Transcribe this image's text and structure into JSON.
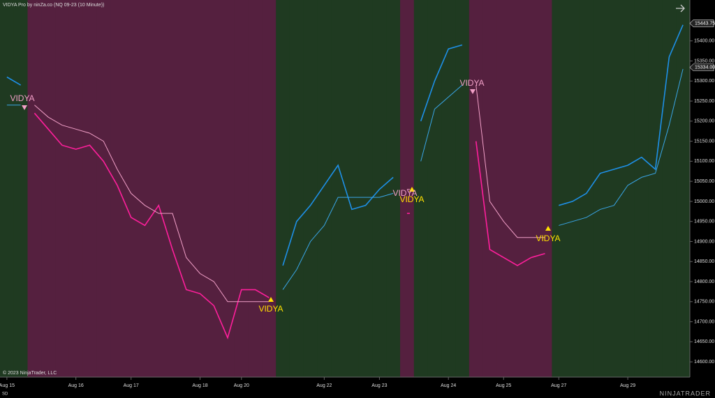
{
  "chart_data": {
    "type": "line",
    "title": "VIDYA Pro by ninZa.co (NQ 09-23 (10 Minute))",
    "copyright": "© 2023 NinjaTrader, LLC",
    "logo": "NINJATRADER",
    "corner_label": "SD",
    "categories": [
      "Aug 15",
      null,
      null,
      null,
      null,
      "Aug 16",
      null,
      null,
      null,
      "Aug 17",
      null,
      null,
      null,
      null,
      "Aug 18",
      null,
      null,
      "Aug 20",
      null,
      null,
      null,
      null,
      null,
      "Aug 22",
      null,
      null,
      null,
      "Aug 23",
      null,
      null,
      null,
      null,
      "Aug 24",
      null,
      null,
      null,
      "Aug 25",
      null,
      null,
      null,
      "Aug 27",
      null,
      null,
      null,
      null,
      "Aug 29",
      null,
      null,
      null,
      null
    ],
    "series": [
      {
        "color": "#1e90e8",
        "values": [
          15310,
          15290,
          null,
          null,
          null,
          null,
          null,
          null,
          null,
          null,
          null,
          null,
          null,
          null,
          null,
          null,
          null,
          null,
          null,
          null,
          14840,
          14950,
          14990,
          15040,
          15090,
          14980,
          14990,
          15030,
          15060,
          null,
          15200,
          15300,
          15380,
          15390,
          null,
          null,
          null,
          null,
          null,
          null,
          14990,
          15000,
          15020,
          15070,
          15080,
          15090,
          15110,
          15080,
          15360,
          15440
        ]
      },
      {
        "color": "#ff1f9c",
        "values": [
          null,
          null,
          15220,
          15180,
          15140,
          15130,
          15140,
          15100,
          15040,
          14960,
          14940,
          14990,
          14880,
          14780,
          14770,
          14740,
          14660,
          14780,
          14780,
          14760,
          null,
          null,
          null,
          null,
          null,
          null,
          null,
          null,
          null,
          14970,
          null,
          null,
          null,
          null,
          15150,
          14880,
          14860,
          14840,
          14860,
          14870,
          null,
          null,
          null,
          null,
          null,
          null,
          null,
          null,
          null,
          null
        ]
      },
      {
        "color": "#3aa6e8",
        "values": [
          15240,
          15240,
          null,
          null,
          null,
          null,
          null,
          null,
          null,
          null,
          null,
          null,
          null,
          null,
          null,
          null,
          null,
          null,
          null,
          null,
          14780,
          14830,
          14900,
          14940,
          15010,
          15010,
          15010,
          15010,
          15020,
          null,
          15100,
          15230,
          15260,
          15290,
          null,
          null,
          null,
          null,
          null,
          null,
          14940,
          14950,
          14960,
          14980,
          14990,
          15040,
          15060,
          15070,
          15190,
          15330
        ]
      },
      {
        "color": "#f2a0c8",
        "values": [
          null,
          null,
          15240,
          15210,
          15190,
          15180,
          15170,
          15150,
          15080,
          15020,
          14990,
          14970,
          14970,
          14860,
          14820,
          14800,
          14750,
          14750,
          14750,
          14750,
          null,
          null,
          null,
          null,
          null,
          null,
          null,
          null,
          null,
          15030,
          null,
          null,
          null,
          null,
          15290,
          15000,
          14950,
          14910,
          14910,
          14910,
          null,
          null,
          null,
          null,
          null,
          null,
          null,
          null,
          null,
          null
        ]
      }
    ],
    "up_background": "#1f3a21",
    "down_background": "#55203f",
    "annotations": [
      "VIDYA",
      "VIDYA",
      "VIDYA",
      "VIDYA",
      "VIDYA",
      "VIDYA"
    ],
    "price_markers": [
      {
        "value": 15443.75,
        "label": "15443.75"
      },
      {
        "value": 15334,
        "label": "15334.00"
      }
    ],
    "ylim": [
      14562,
      15502
    ],
    "yticks": [
      {
        "value": 14600,
        "label": "14600.00"
      },
      {
        "value": 14650,
        "label": "14650.00"
      },
      {
        "value": 14700,
        "label": "14700.00"
      },
      {
        "value": 14750,
        "label": "14750.00"
      },
      {
        "value": 14800,
        "label": "14800.00"
      },
      {
        "value": 14850,
        "label": "14850.00"
      },
      {
        "value": 14900,
        "label": "14900.00"
      },
      {
        "value": 14950,
        "label": "14950.00"
      },
      {
        "value": 15000,
        "label": "15000.00"
      },
      {
        "value": 15050,
        "label": "15050.00"
      },
      {
        "value": 15100,
        "label": "15100.00"
      },
      {
        "value": 15150,
        "label": "15150.00"
      },
      {
        "value": 15200,
        "label": "15200.00"
      },
      {
        "value": 15250,
        "label": "15250.00"
      },
      {
        "value": 15300,
        "label": "15300.00"
      },
      {
        "value": 15350,
        "label": "15350.00"
      },
      {
        "value": 15400,
        "label": "15400.00"
      }
    ]
  }
}
